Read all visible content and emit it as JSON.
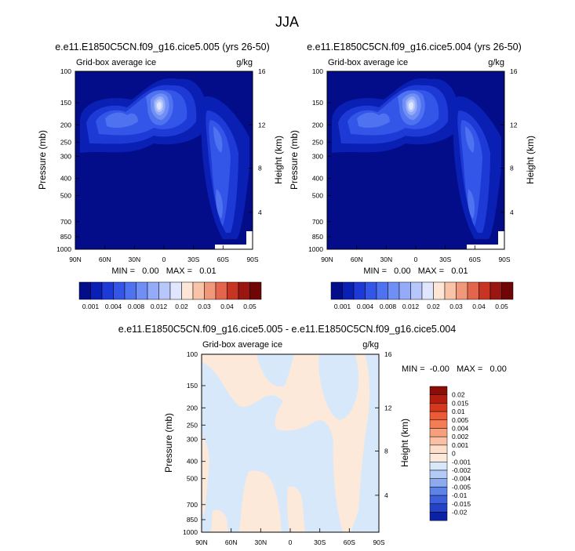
{
  "figure_title": "JJA",
  "chart_data": [
    {
      "type": "heatmap",
      "title": "e.e11.E1850C5CN.f09_g16.cice5.005 (yrs 26-50)",
      "left_label": "Grid-box average ice",
      "units": "g/kg",
      "xlabel": "",
      "ylabel": "Pressure (mb)",
      "y2label": "Height (km)",
      "x_ticks": [
        "90N",
        "60N",
        "30N",
        "0",
        "30S",
        "60S",
        "90S"
      ],
      "y_ticks": [
        "100",
        "150",
        "200",
        "250",
        "300",
        "400",
        "500",
        "700",
        "850",
        "1000"
      ],
      "y_tick_values": [
        100,
        150,
        200,
        250,
        300,
        400,
        500,
        700,
        850,
        1000
      ],
      "y2_ticks": [
        "16",
        "12",
        "8",
        "4"
      ],
      "y2_tick_pressures": [
        100,
        200,
        350,
        620
      ],
      "stats": "MIN =   0.00   MAX =   0.01",
      "min": 0.0,
      "max": 0.01,
      "colorbar_levels": [
        "0.001",
        "0.004",
        "0.008",
        "0.012",
        "0.02",
        "0.03",
        "0.04",
        "0.05"
      ],
      "colorbar_colors": [
        "#030d8a",
        "#0a1fb3",
        "#1d3ad6",
        "#3355e8",
        "#4f72f0",
        "#6f8ff5",
        "#93abf8",
        "#b7c7fb",
        "#dfe6fd",
        "#fde6d6",
        "#f8c3a6",
        "#f2987a",
        "#e3654c",
        "#c73422",
        "#9a1610",
        "#6e0606"
      ],
      "colorbar_orientation": "horizontal"
    },
    {
      "type": "heatmap",
      "title": "e.e11.E1850C5CN.f09_g16.cice5.004 (yrs 26-50)",
      "left_label": "Grid-box average ice",
      "units": "g/kg",
      "xlabel": "",
      "ylabel": "Pressure (mb)",
      "y2label": "Height (km)",
      "x_ticks": [
        "90N",
        "60N",
        "30N",
        "0",
        "30S",
        "60S",
        "90S"
      ],
      "y_ticks": [
        "100",
        "150",
        "200",
        "250",
        "300",
        "400",
        "500",
        "700",
        "850",
        "1000"
      ],
      "y_tick_values": [
        100,
        150,
        200,
        250,
        300,
        400,
        500,
        700,
        850,
        1000
      ],
      "y2_ticks": [
        "16",
        "12",
        "8",
        "4"
      ],
      "y2_tick_pressures": [
        100,
        200,
        350,
        620
      ],
      "stats": "MIN =   0.00   MAX =   0.01",
      "min": 0.0,
      "max": 0.01,
      "colorbar_levels": [
        "0.001",
        "0.004",
        "0.008",
        "0.012",
        "0.02",
        "0.03",
        "0.04",
        "0.05"
      ],
      "colorbar_colors": [
        "#030d8a",
        "#0a1fb3",
        "#1d3ad6",
        "#3355e8",
        "#4f72f0",
        "#6f8ff5",
        "#93abf8",
        "#b7c7fb",
        "#dfe6fd",
        "#fde6d6",
        "#f8c3a6",
        "#f2987a",
        "#e3654c",
        "#c73422",
        "#9a1610",
        "#6e0606"
      ],
      "colorbar_orientation": "horizontal"
    },
    {
      "type": "heatmap",
      "title": "e.e11.E1850C5CN.f09_g16.cice5.005 - e.e11.E1850C5CN.f09_g16.cice5.004",
      "left_label": "Grid-box average ice",
      "units": "g/kg",
      "xlabel": "",
      "ylabel": "Pressure (mb)",
      "y2label": "Height (km)",
      "x_ticks": [
        "90N",
        "60N",
        "30N",
        "0",
        "30S",
        "60S",
        "90S"
      ],
      "y_ticks": [
        "100",
        "150",
        "200",
        "250",
        "300",
        "400",
        "500",
        "700",
        "850",
        "1000"
      ],
      "y_tick_values": [
        100,
        150,
        200,
        250,
        300,
        400,
        500,
        700,
        850,
        1000
      ],
      "y2_ticks": [
        "16",
        "12",
        "8",
        "4"
      ],
      "y2_tick_pressures": [
        100,
        200,
        350,
        620
      ],
      "stats": "MIN =  -0.00   MAX =   0.00",
      "min": -0.0,
      "max": 0.0,
      "colorbar_levels": [
        "0.02",
        "0.015",
        "0.01",
        "0.005",
        "0.004",
        "0.002",
        "0.001",
        "0",
        "-0.001",
        "-0.002",
        "-0.004",
        "-0.005",
        "-0.01",
        "-0.015",
        "-0.02"
      ],
      "colorbar_colors": [
        "#8c0c06",
        "#b31d10",
        "#d6381e",
        "#ec5a36",
        "#f47d55",
        "#f79e7c",
        "#fac0a4",
        "#fddfc9",
        "#fde9d9",
        "#d8e8fb",
        "#b3cbf6",
        "#8caaf0",
        "#5d83e8",
        "#3c5fdc",
        "#2442c8",
        "#0a22a3"
      ],
      "colorbar_orientation": "vertical"
    }
  ]
}
